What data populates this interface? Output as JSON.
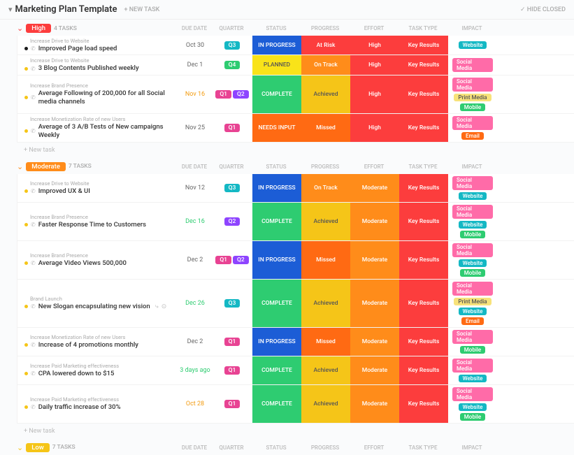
{
  "header": {
    "title": "Marketing Plan Template",
    "new_task": "+ NEW TASK",
    "hide_closed": "✓ HIDE CLOSED"
  },
  "columns": {
    "due_date": "DUE DATE",
    "quarter": "QUARTER",
    "status": "STATUS",
    "progress": "PROGRESS",
    "effort": "EFFORT",
    "task_type": "TASK TYPE",
    "impact": "IMPACT"
  },
  "new_task_label": "+ New task",
  "groups": [
    {
      "name": "High",
      "color": "#fc3d3d",
      "count": "4 TASKS",
      "caret_color": "#fc3d3d",
      "tasks": [
        {
          "parent": "Increase Drive to Website",
          "name": "Improved Page load speed",
          "bullet": "#1a1a1a",
          "date": "Oct 30",
          "date_class": "",
          "quarters": [
            {
              "t": "Q3",
              "c": "#14b8c4"
            }
          ],
          "status": {
            "t": "IN PROGRESS",
            "c": "#1c5dd6"
          },
          "progress": {
            "t": "At Risk",
            "c": "#fc3d3d"
          },
          "effort": {
            "t": "High",
            "c": "#fc3d3d"
          },
          "task_type": {
            "t": "Key Results",
            "c": "#fc3d3d"
          },
          "impact": [
            {
              "t": "Website",
              "c": "#14b8c4"
            }
          ]
        },
        {
          "parent": "Increase Drive to Website",
          "name": "3 Blog Contents Published weekly",
          "bullet": "#f5c518",
          "date": "Dec 1",
          "date_class": "",
          "quarters": [
            {
              "t": "Q4",
              "c": "#2ecc71"
            }
          ],
          "status": {
            "t": "PLANNED",
            "c": "#f9e319"
          },
          "progress": {
            "t": "On Track",
            "c": "#ff8c1a"
          },
          "effort": {
            "t": "High",
            "c": "#fc3d3d"
          },
          "task_type": {
            "t": "Key Results",
            "c": "#fc3d3d"
          },
          "impact": [
            {
              "t": "Social Media",
              "c": "#ff6ba8"
            }
          ]
        },
        {
          "parent": "Increase Brand Presence",
          "name": "Average Following of 200,000 for all Social media channels",
          "bullet": "#f5c518",
          "date": "Nov 16",
          "date_class": "orange",
          "quarters": [
            {
              "t": "Q1",
              "c": "#e84393"
            },
            {
              "t": "Q2",
              "c": "#8e44ff"
            }
          ],
          "status": {
            "t": "COMPLETE",
            "c": "#2ecc71"
          },
          "progress": {
            "t": "Achieved",
            "c": "#f5c518"
          },
          "effort": {
            "t": "High",
            "c": "#fc3d3d"
          },
          "task_type": {
            "t": "Key Results",
            "c": "#fc3d3d"
          },
          "impact": [
            {
              "t": "Social Media",
              "c": "#ff6ba8"
            },
            {
              "t": "Print Media",
              "c": "#f7e27a",
              "light": true
            },
            {
              "t": "Mobile",
              "c": "#2ecc71"
            }
          ]
        },
        {
          "parent": "Increase Monetization Rate of new Users",
          "name": "Average of 3 A/B Tests of New campaigns Weekly",
          "bullet": "#f5c518",
          "date": "Nov 25",
          "date_class": "",
          "quarters": [
            {
              "t": "Q1",
              "c": "#e84393"
            }
          ],
          "status": {
            "t": "NEEDS INPUT",
            "c": "#ff6a13"
          },
          "progress": {
            "t": "Missed",
            "c": "#ff6a13"
          },
          "effort": {
            "t": "High",
            "c": "#fc3d3d"
          },
          "task_type": {
            "t": "Key Results",
            "c": "#fc3d3d"
          },
          "impact": [
            {
              "t": "Social Media",
              "c": "#ff6ba8"
            },
            {
              "t": "Email",
              "c": "#ff6a13"
            }
          ]
        }
      ]
    },
    {
      "name": "Moderate",
      "color": "#ff8c1a",
      "count": "7 TASKS",
      "caret_color": "#ff8c1a",
      "tasks": [
        {
          "parent": "Increase Drive to Website",
          "name": "Improved UX & UI",
          "bullet": "#f5c518",
          "date": "Nov 12",
          "date_class": "",
          "quarters": [
            {
              "t": "Q3",
              "c": "#14b8c4"
            }
          ],
          "status": {
            "t": "IN PROGRESS",
            "c": "#1c5dd6"
          },
          "progress": {
            "t": "On Track",
            "c": "#ff8c1a"
          },
          "effort": {
            "t": "Moderate",
            "c": "#ff8c1a"
          },
          "task_type": {
            "t": "Key Results",
            "c": "#fc3d3d"
          },
          "impact": [
            {
              "t": "Social Media",
              "c": "#ff6ba8"
            },
            {
              "t": "Website",
              "c": "#14b8c4"
            }
          ]
        },
        {
          "parent": "Increase Brand Presence",
          "name": "Faster Response Time to Customers",
          "bullet": "#f5c518",
          "date": "Dec 16",
          "date_class": "green",
          "quarters": [
            {
              "t": "Q2",
              "c": "#8e44ff"
            }
          ],
          "status": {
            "t": "COMPLETE",
            "c": "#2ecc71"
          },
          "progress": {
            "t": "Achieved",
            "c": "#f5c518"
          },
          "effort": {
            "t": "Moderate",
            "c": "#ff8c1a"
          },
          "task_type": {
            "t": "Key Results",
            "c": "#fc3d3d"
          },
          "impact": [
            {
              "t": "Social Media",
              "c": "#ff6ba8"
            },
            {
              "t": "Website",
              "c": "#14b8c4"
            },
            {
              "t": "Mobile",
              "c": "#2ecc71"
            }
          ]
        },
        {
          "parent": "Increase Brand Presence",
          "name": "Average Video Views 500,000",
          "bullet": "#f5c518",
          "date": "Dec 2",
          "date_class": "",
          "quarters": [
            {
              "t": "Q1",
              "c": "#e84393"
            },
            {
              "t": "Q2",
              "c": "#8e44ff"
            }
          ],
          "status": {
            "t": "IN PROGRESS",
            "c": "#1c5dd6"
          },
          "progress": {
            "t": "Missed",
            "c": "#ff6a13"
          },
          "effort": {
            "t": "Moderate",
            "c": "#ff8c1a"
          },
          "task_type": {
            "t": "Key Results",
            "c": "#fc3d3d"
          },
          "impact": [
            {
              "t": "Social Media",
              "c": "#ff6ba8"
            },
            {
              "t": "Website",
              "c": "#14b8c4"
            },
            {
              "t": "Mobile",
              "c": "#2ecc71"
            }
          ]
        },
        {
          "parent": "Brand Launch",
          "name": "New Slogan encapsulating new vision",
          "bullet": "#f5c518",
          "date": "Dec 26",
          "date_class": "green",
          "actions": true,
          "quarters": [
            {
              "t": "Q3",
              "c": "#14b8c4"
            }
          ],
          "status": {
            "t": "COMPLETE",
            "c": "#2ecc71"
          },
          "progress": {
            "t": "Achieved",
            "c": "#f5c518"
          },
          "effort": {
            "t": "Moderate",
            "c": "#ff8c1a"
          },
          "task_type": {
            "t": "Key Results",
            "c": "#fc3d3d"
          },
          "impact": [
            {
              "t": "Social Media",
              "c": "#ff6ba8"
            },
            {
              "t": "Print Media",
              "c": "#f7e27a",
              "light": true
            },
            {
              "t": "Website",
              "c": "#14b8c4"
            },
            {
              "t": "Email",
              "c": "#ff6a13"
            }
          ]
        },
        {
          "parent": "Increase Monetization Rate of new Users",
          "name": "Increase of 4 promotions monthly",
          "bullet": "#f5c518",
          "date": "Dec 2",
          "date_class": "",
          "quarters": [
            {
              "t": "Q1",
              "c": "#e84393"
            }
          ],
          "status": {
            "t": "IN PROGRESS",
            "c": "#1c5dd6"
          },
          "progress": {
            "t": "Missed",
            "c": "#ff6a13"
          },
          "effort": {
            "t": "Moderate",
            "c": "#ff8c1a"
          },
          "task_type": {
            "t": "Key Results",
            "c": "#fc3d3d"
          },
          "impact": [
            {
              "t": "Social Media",
              "c": "#ff6ba8"
            },
            {
              "t": "Mobile",
              "c": "#2ecc71"
            }
          ]
        },
        {
          "parent": "Increase Paid Marketing effectiveness",
          "name": "CPA lowered down to $15",
          "bullet": "#f5c518",
          "date": "3 days ago",
          "date_class": "green",
          "quarters": [
            {
              "t": "Q1",
              "c": "#e84393"
            }
          ],
          "status": {
            "t": "COMPLETE",
            "c": "#2ecc71"
          },
          "progress": {
            "t": "Achieved",
            "c": "#f5c518"
          },
          "effort": {
            "t": "Moderate",
            "c": "#ff8c1a"
          },
          "task_type": {
            "t": "Key Results",
            "c": "#fc3d3d"
          },
          "impact": [
            {
              "t": "Social Media",
              "c": "#ff6ba8"
            },
            {
              "t": "Website",
              "c": "#14b8c4"
            }
          ]
        },
        {
          "parent": "Increase Paid Marketing effectiveness",
          "name": "Daily traffic increase of 30%",
          "bullet": "#f5c518",
          "date": "Oct 28",
          "date_class": "orange",
          "quarters": [
            {
              "t": "Q1",
              "c": "#e84393"
            }
          ],
          "status": {
            "t": "COMPLETE",
            "c": "#2ecc71"
          },
          "progress": {
            "t": "Achieved",
            "c": "#f5c518"
          },
          "effort": {
            "t": "Moderate",
            "c": "#ff8c1a"
          },
          "task_type": {
            "t": "Key Results",
            "c": "#fc3d3d"
          },
          "impact": [
            {
              "t": "Social Media",
              "c": "#ff6ba8"
            },
            {
              "t": "Website",
              "c": "#14b8c4"
            },
            {
              "t": "Mobile",
              "c": "#2ecc71"
            }
          ]
        }
      ]
    },
    {
      "name": "Low",
      "color": "#f5c518",
      "count": "7 TASKS",
      "caret_color": "#f5c518",
      "tasks": []
    }
  ]
}
